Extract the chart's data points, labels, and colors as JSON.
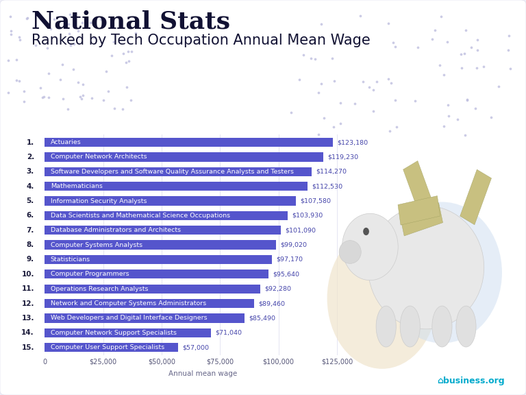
{
  "title1": "National Stats",
  "title2": "Ranked by Tech Occupation Annual Mean Wage",
  "xlabel": "Annual mean wage",
  "categories": [
    "Actuaries",
    "Computer Network Architects",
    "Software Developers and Software Quality Assurance Analysts and Testers",
    "Mathematicians",
    "Information Security Analysts",
    "Data Scientists and Mathematical Science Occupations",
    "Database Administrators and Architects",
    "Computer Systems Analysts",
    "Statisticians",
    "Computer Programmers",
    "Operations Research Analysts",
    "Network and Computer Systems Administrators",
    "Web Developers and Digital Interface Designers",
    "Computer Network Support Specialists",
    "Computer User Support Specialists"
  ],
  "values": [
    123180,
    119230,
    114270,
    112530,
    107580,
    103930,
    101090,
    99020,
    97170,
    95640,
    92280,
    89460,
    85490,
    71040,
    57000
  ],
  "bar_color": "#5555cc",
  "value_color": "#4444aa",
  "bg_color": "#f0f0f8",
  "bg_inner": "#ffffff",
  "xlim": [
    0,
    135000
  ],
  "xtick_vals": [
    0,
    25000,
    50000,
    75000,
    100000,
    125000
  ],
  "xtick_labels": [
    "0",
    "$25,000",
    "$50,000",
    "$75,000",
    "$100,000",
    "$125,000"
  ],
  "title1_fontsize": 26,
  "title2_fontsize": 15,
  "bar_label_fontsize": 6.8,
  "value_label_fontsize": 6.8,
  "rank_fontsize": 7.5,
  "xlabel_fontsize": 7.5,
  "dot_color": "#c0c0e0",
  "piggy_blob1_color": "#e8d8c0",
  "piggy_blob2_color": "#d0e0f0"
}
